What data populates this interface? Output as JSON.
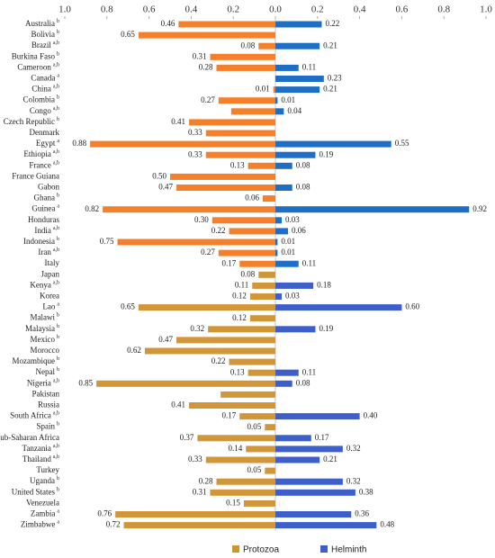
{
  "chart_data": {
    "type": "diverging-bar",
    "categories": [
      "Australia",
      "Bolivia",
      "Brazil",
      "Burkina Faso",
      "Cameroon",
      "Canada",
      "China",
      "Colombia",
      "Congo",
      "Czech Republic",
      "Denmark",
      "Egypt",
      "Ethiopia",
      "France",
      "France Guiana",
      "Gabon",
      "Ghana",
      "Guinea",
      "Honduras",
      "India",
      "Indonesia",
      "Iran",
      "Italy",
      "Japan",
      "Kenya",
      "Korea",
      "Lao",
      "Malawi",
      "Malaysia",
      "Mexico",
      "Morocco",
      "Mozambique",
      "Nepal",
      "Nigeria",
      "Pakistan",
      "Russia",
      "South Africa",
      "Spain",
      "Sub-Saharan Africa",
      "Tanzania",
      "Thailand",
      "Turkey",
      "Uganda",
      "United States",
      "Venezuela",
      "Zambia",
      "Zimbabwe"
    ],
    "category_notes": [
      "b",
      "b",
      "a,b",
      "b",
      "a,b",
      "a",
      "a,b",
      "b",
      "a,b",
      "b",
      null,
      "a",
      "a,b",
      "a,b",
      null,
      null,
      "b",
      "a",
      null,
      "a,b",
      "b",
      "a,b",
      null,
      null,
      "a,b",
      null,
      "a",
      "b",
      "b",
      "b",
      null,
      "b",
      "b",
      "a,b",
      null,
      null,
      "a,b",
      "b",
      null,
      "a,b",
      "a,b",
      null,
      "b",
      "b",
      null,
      "a",
      "a"
    ],
    "xlim": [
      1,
      0
    ],
    "xticks": [
      {
        "value": 1,
        "label": "1.0"
      },
      0.8,
      0.6,
      0.4,
      0.2,
      {
        "value": 0,
        "label": "0.0"
      }
    ],
    "x2lim": [
      0,
      1
    ],
    "x2ticks": [
      0.2,
      0.4,
      0.6,
      0.8,
      {
        "value": 1,
        "label": "1.0"
      }
    ],
    "series": [
      {
        "name": "Protozoa",
        "color": "#c9962f",
        "side": "left",
        "values": [
          0.46,
          0.65,
          0.08,
          0.31,
          0.28,
          null,
          0.01,
          0.27,
          0.21,
          0.41,
          0.33,
          0.88,
          0.33,
          0.13,
          0.5,
          0.47,
          0.06,
          0.82,
          0.3,
          0.22,
          0.75,
          0.27,
          0.17,
          0.08,
          0.11,
          0.12,
          0.65,
          0.12,
          0.32,
          0.47,
          0.62,
          0.22,
          0.13,
          0.85,
          0.26,
          0.41,
          0.17,
          0.05,
          0.37,
          0.14,
          0.33,
          0.05,
          0.28,
          0.31,
          0.15,
          0.76,
          0.72
        ],
        "value_labels": [
          "0.46",
          "0.65",
          "0.08",
          "0.31",
          "0.28",
          null,
          "0.01",
          "0.27",
          null,
          "0.41",
          "0.33",
          "0.88",
          "0.33",
          "0.13",
          "0.50",
          "0.47",
          "0.06",
          "0.82",
          "0.30",
          "0.22",
          "0.75",
          "0.27",
          "0.17",
          "0.08",
          "0.11",
          "0.12",
          "0.65",
          "0.12",
          "0.32",
          "0.47",
          "0.62",
          "0.22",
          "0.13",
          "0.85",
          null,
          "0.41",
          "0.17",
          "0.05",
          "0.37",
          "0.14",
          "0.33",
          "0.05",
          "0.28",
          "0.31",
          "0.15",
          "0.76",
          "0.72"
        ],
        "bar_colors": [
          "#f4802c",
          "#f4802c",
          "#f4802c",
          "#f4802c",
          "#f4802c",
          "#f4802c",
          "#f4802c",
          "#f4802c",
          "#f4802c",
          "#f4802c",
          "#f4802c",
          "#f4802c",
          "#f4802c",
          "#f4802c",
          "#f4802c",
          "#f4802c",
          "#f4802c",
          "#f4802c",
          "#f4802c",
          "#f4802c",
          "#f4802c",
          "#f4802c",
          "#f4802c",
          "#d19638",
          "#d19638",
          "#d19638",
          "#d19638",
          "#d19638",
          "#d19638",
          "#d19638",
          "#d19638",
          "#d19638",
          "#d19638",
          "#d19638",
          "#d19638",
          "#d19638",
          "#d19638",
          "#d19638",
          "#d19638",
          "#d19638",
          "#d19638",
          "#d19638",
          "#d19638",
          "#d19638",
          "#d19638",
          "#d19638",
          "#d19638"
        ]
      },
      {
        "name": "Helminth",
        "color": "#3d5fca",
        "side": "right",
        "values": [
          0.22,
          null,
          0.21,
          null,
          0.11,
          0.23,
          0.21,
          0.01,
          0.04,
          null,
          null,
          0.55,
          0.19,
          0.08,
          null,
          0.08,
          null,
          0.92,
          0.03,
          0.06,
          0.01,
          0.01,
          0.11,
          null,
          0.18,
          0.03,
          0.6,
          null,
          0.19,
          null,
          null,
          null,
          0.11,
          0.08,
          null,
          null,
          0.4,
          null,
          0.17,
          0.32,
          0.21,
          null,
          0.32,
          0.38,
          null,
          0.36,
          0.48
        ],
        "value_labels": [
          "0.22",
          null,
          "0.21",
          null,
          "0.11",
          "0.23",
          "0.21",
          "0.01",
          "0.04",
          null,
          null,
          "0.55",
          "0.19",
          "0.08",
          null,
          "0.08",
          null,
          "0.92",
          "0.03",
          "0.06",
          "0.01",
          "0.01",
          "0.11",
          null,
          "0.18",
          "0.03",
          "0.60",
          null,
          "0.19",
          null,
          null,
          null,
          "0.11",
          "0.08",
          null,
          null,
          "0.40",
          null,
          "0.17",
          "0.32",
          "0.21",
          null,
          "0.32",
          "0.38",
          null,
          "0.36",
          "0.48"
        ],
        "bar_colors": [
          "#1f6ec6",
          "#1f6ec6",
          "#1f6ec6",
          "#1f6ec6",
          "#1f6ec6",
          "#1f6ec6",
          "#1f6ec6",
          "#1f6ec6",
          "#1f6ec6",
          "#1f6ec6",
          "#1f6ec6",
          "#1f6ec6",
          "#1f6ec6",
          "#1f6ec6",
          "#1f6ec6",
          "#1f6ec6",
          "#1f6ec6",
          "#1f6ec6",
          "#1f6ec6",
          "#1f6ec6",
          "#1f6ec6",
          "#1f6ec6",
          "#1f6ec6",
          "#3d5fca",
          "#3d5fca",
          "#3d5fca",
          "#3d5fca",
          "#3d5fca",
          "#3d5fca",
          "#3d5fca",
          "#3d5fca",
          "#3d5fca",
          "#3d5fca",
          "#3d5fca",
          "#3d5fca",
          "#3d5fca",
          "#3d5fca",
          "#3d5fca",
          "#3d5fca",
          "#3d5fca",
          "#3d5fca",
          "#3d5fca",
          "#3d5fca",
          "#3d5fca",
          "#3d5fca",
          "#3d5fca",
          "#3d5fca"
        ]
      }
    ]
  }
}
